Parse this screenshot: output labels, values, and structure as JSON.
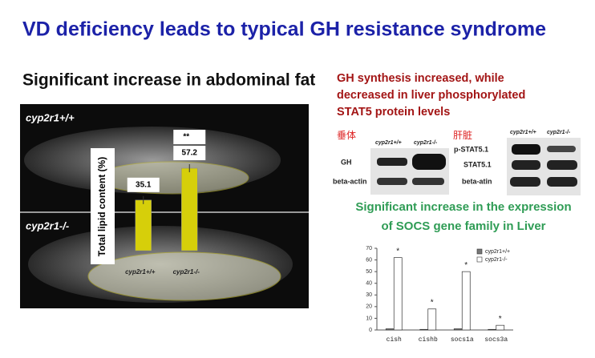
{
  "title": "VD deficiency leads to typical GH resistance syndrome",
  "left": {
    "heading": "Significant increase in abdominal fat",
    "photo_labels": [
      "cyp2r1+/+",
      "cyp2r1-/-"
    ]
  },
  "right": {
    "heading": [
      "GH synthesis increased,  while",
      "decreased in liver phosphorylated",
      "STAT5 protein levels"
    ],
    "blots": [
      {
        "tissue": "垂体",
        "lanes": [
          "cyp2r1+/+",
          "cyp2r1-/-"
        ],
        "rows": [
          "GH",
          "beta-actin"
        ]
      },
      {
        "tissue": "肝脏",
        "lanes": [
          "cyp2r1+/+",
          "cyp2r1-/-"
        ],
        "rows": [
          "p-STAT5.1",
          "STAT5.1",
          "beta-atin"
        ]
      }
    ],
    "socs_heading": [
      "Significant increase in the expression",
      "of  SOCS gene family in Liver"
    ]
  },
  "chart_data": [
    {
      "type": "bar",
      "categories": [
        "cyp2r1+/+",
        "cyp2r1-/-"
      ],
      "values": [
        35.1,
        57.2
      ],
      "color": "#d6cf0a",
      "y_label": "Total lipid content (%)",
      "ylim": [
        0,
        60
      ],
      "significance": [
        null,
        "**"
      ]
    },
    {
      "type": "grouped-bar",
      "categories": [
        "cish",
        "cishb",
        "socs1a",
        "socs3a"
      ],
      "series": [
        {
          "name": "cyp2r1+/+",
          "color": "#777777",
          "values": [
            1,
            0.5,
            1,
            0.5
          ]
        },
        {
          "name": "cyp2r1-/-",
          "color": "#ffffff",
          "values": [
            62,
            18,
            50,
            4
          ]
        }
      ],
      "ylim": [
        0,
        70
      ],
      "yticks": [
        0,
        10,
        20,
        30,
        40,
        50,
        60,
        70
      ],
      "significance": [
        "*",
        "*",
        "*",
        "*"
      ],
      "legend": "upper right"
    }
  ]
}
